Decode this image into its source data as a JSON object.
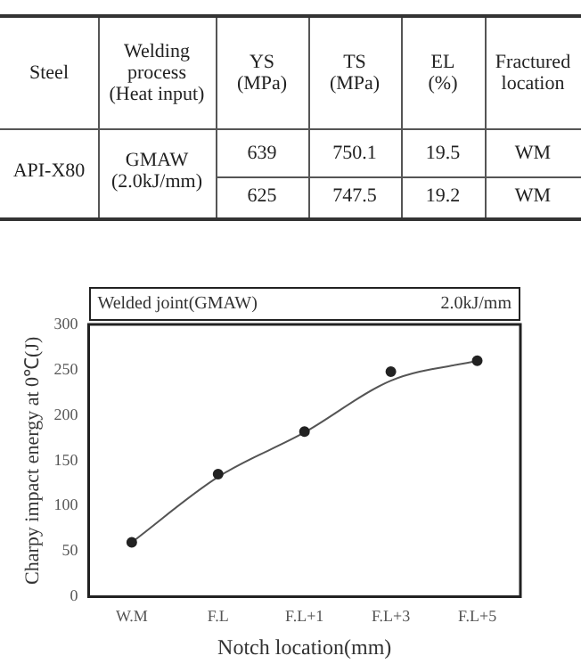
{
  "chart_data": [
    {
      "type": "other",
      "annotations": [
        "Steel",
        "Welding\nprocess\n(Heat input)",
        "YS\n(MPa)",
        "TS\n(MPa)",
        "EL\n(%)",
        "Fractured\nlocation",
        "API-X80",
        "GMAW\n(2.0kJ/mm)",
        "639",
        "750.1",
        "19.5",
        "WM",
        "625",
        "747.5",
        "19.2",
        "WM"
      ]
    },
    {
      "type": "line",
      "title": "Welded joint(GMAW)",
      "subtitle": "2.0kJ/mm",
      "xlabel": "Notch location(mm)",
      "ylabel": "Charpy impact energy at 0℃(J)",
      "categories": [
        "W.M",
        "F.L",
        "F.L+1",
        "F.L+3",
        "F.L+5"
      ],
      "ylim": [
        0,
        300
      ],
      "yticks": [
        0,
        50,
        100,
        150,
        200,
        250,
        300
      ],
      "series": [
        {
          "type": "scatter",
          "marker": "circle",
          "color": "#222222",
          "values": [
            60,
            135,
            182,
            248,
            260
          ]
        },
        {
          "type": "line",
          "marker": "none",
          "color": "#555555",
          "values": [
            60,
            132,
            181,
            238,
            260
          ]
        }
      ]
    }
  ]
}
